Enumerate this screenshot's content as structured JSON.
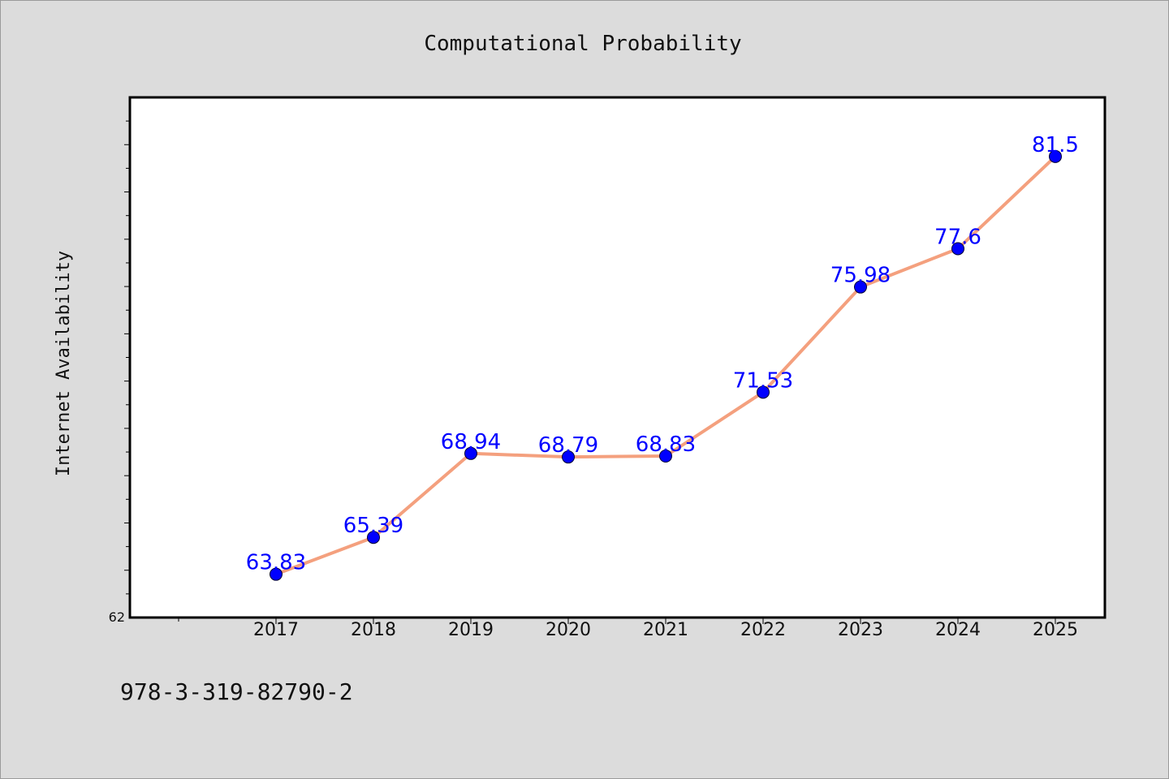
{
  "chart_data": {
    "type": "line",
    "title": "Computational Probability",
    "xlabel": "",
    "ylabel": "Internet Availability",
    "categories": [
      "2017",
      "2018",
      "2019",
      "2020",
      "2021",
      "2022",
      "2023",
      "2024",
      "2025"
    ],
    "series": [
      {
        "values": [
          63.83,
          65.39,
          68.94,
          68.79,
          68.83,
          71.53,
          75.98,
          77.6,
          81.5
        ],
        "data_labels": [
          "63.83",
          "65.39",
          "68.94",
          "68.79",
          "68.83",
          "71.53",
          "75.98",
          "77.6",
          "81.5"
        ]
      }
    ],
    "ylim": [
      62,
      84
    ],
    "y_tick_labels": [
      "62"
    ],
    "grid": false,
    "legend": "none",
    "colors": {
      "background": "#dcdcdc",
      "plot_background": "#ffffff",
      "line": "#f4a07e",
      "marker": "#0000ff",
      "data_label": "#0000ff",
      "text": "#111111"
    }
  },
  "footer": {
    "isbn": "978-3-319-82790-2"
  }
}
